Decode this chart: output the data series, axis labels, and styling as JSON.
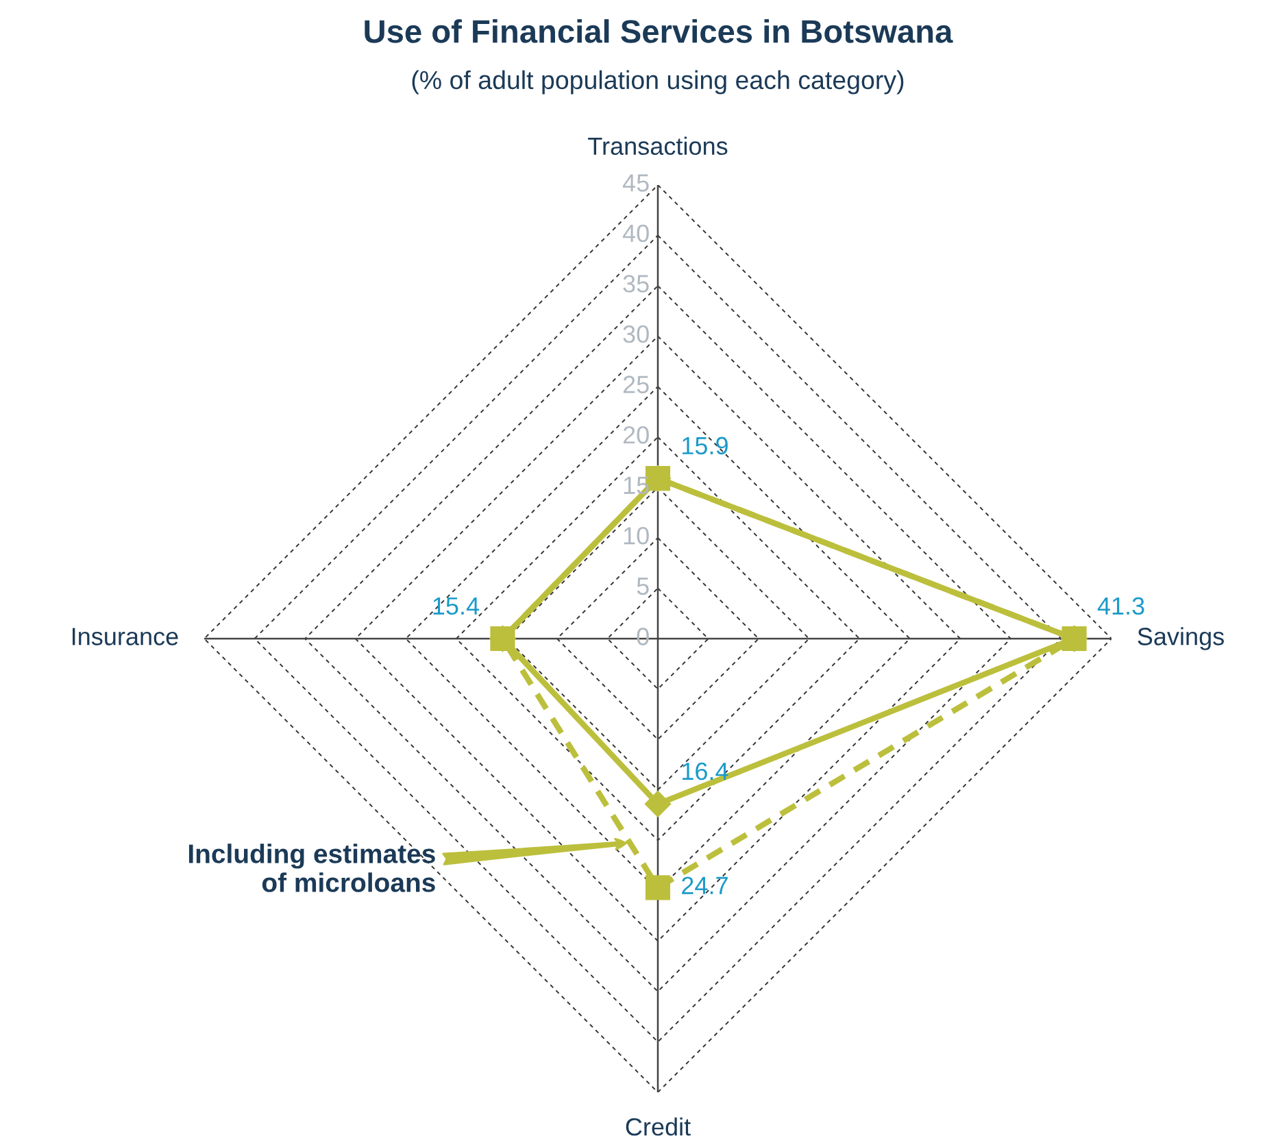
{
  "chart_data": {
    "type": "radar",
    "title": "Use of Financial Services in Botswana",
    "subtitle": "(% of adult population using each category)",
    "categories": [
      "Transactions",
      "Savings",
      "Credit",
      "Insurance"
    ],
    "ylim": [
      0,
      45
    ],
    "yticks": [
      0,
      5,
      10,
      15,
      20,
      25,
      30,
      35,
      40,
      45
    ],
    "grid": true,
    "series": [
      {
        "color": "#bcbf3c",
        "values": [
          15.9,
          41.3,
          16.4,
          15.4
        ],
        "marker": "diamond",
        "line_style": "solid",
        "value_labels": [
          "15.9",
          "41.3",
          "16.4",
          "15.4"
        ]
      },
      {
        "color": "#bcbf3c",
        "values": [
          15.9,
          41.3,
          24.7,
          15.4
        ],
        "marker": "square",
        "line_style": "dashed",
        "value_labels": [
          null,
          null,
          "24.7",
          null
        ]
      }
    ],
    "annotations": [
      "Including estimates\nof microloans"
    ]
  }
}
